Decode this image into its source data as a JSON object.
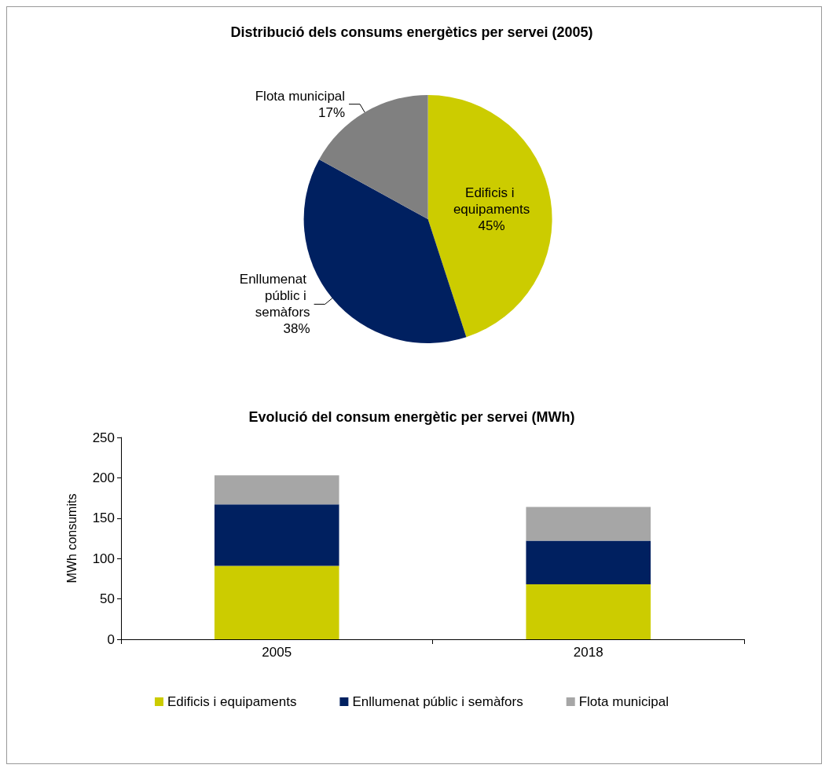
{
  "chart_data": [
    {
      "type": "pie",
      "title": "Distribució dels consums energètics per servei (2005)",
      "categories": [
        "Edificis i equipaments",
        "Enllumenat públic i semàfors",
        "Flota municipal"
      ],
      "values": [
        45,
        38,
        17
      ],
      "colors": [
        "#cccc00",
        "#002060",
        "#808080"
      ],
      "value_labels": [
        "45%",
        "38%",
        "17%"
      ]
    },
    {
      "type": "bar",
      "title": "Evolució del consum energètic per servei (MWh)",
      "ylabel": "MWh consumits",
      "categories": [
        "2005",
        "2018"
      ],
      "stacked": true,
      "legend": "bottom",
      "ylim": [
        0,
        250
      ],
      "yticks": [
        0,
        50,
        100,
        150,
        200,
        250
      ],
      "series": [
        {
          "name": "Edificis i equipaments",
          "color": "#cccc00",
          "values": [
            91,
            68
          ]
        },
        {
          "name": "Enllumenat públic i semàfors",
          "color": "#002060",
          "values": [
            76,
            54
          ]
        },
        {
          "name": "Flota municipal",
          "color": "#a6a6a6",
          "values": [
            36,
            42
          ]
        }
      ]
    }
  ]
}
